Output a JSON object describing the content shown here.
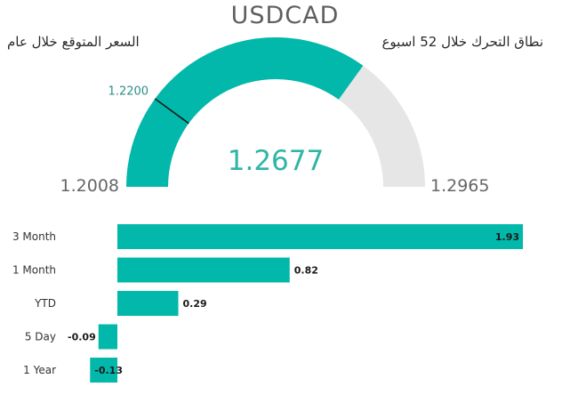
{
  "title": "USDCAD",
  "label_left": "السعر المتوقع خلال عام",
  "label_right": "نطاق التحرك خلال 52 اسبوع",
  "colors": {
    "fill": "#01b8aa",
    "track": "#e6e6e6",
    "text": "#666666",
    "value": "#2fb5a6",
    "target": "#1a1a1a"
  },
  "chart_data": [
    {
      "type": "gauge",
      "min": 1.2008,
      "max": 1.2965,
      "value": 1.2677,
      "target": 1.22,
      "min_label": "1.2008",
      "max_label": "1.2965",
      "value_label": "1.2677",
      "target_label": "1.2200"
    },
    {
      "type": "bar",
      "orientation": "horizontal",
      "categories": [
        "3 Month",
        "1 Month",
        "YTD",
        "5 Day",
        "1 Year"
      ],
      "values": [
        1.93,
        0.82,
        0.29,
        -0.09,
        -0.13
      ],
      "value_labels": [
        "1.93",
        "0.82",
        "0.29",
        "-0.09",
        "-0.13"
      ]
    }
  ]
}
